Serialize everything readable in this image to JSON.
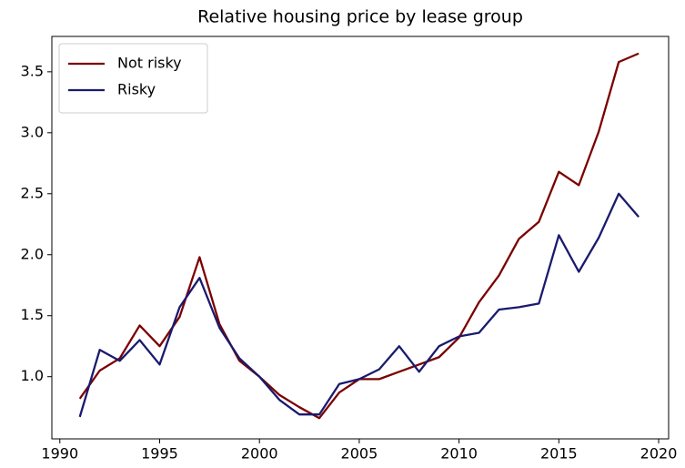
{
  "chart_data": {
    "type": "line",
    "title": "Relative housing price by lease group",
    "x": [
      1991,
      1992,
      1993,
      1994,
      1995,
      1996,
      1997,
      1998,
      1999,
      2000,
      2001,
      2002,
      2003,
      2004,
      2005,
      2006,
      2007,
      2008,
      2009,
      2010,
      2011,
      2012,
      2013,
      2014,
      2015,
      2016,
      2017,
      2018,
      2019
    ],
    "series": [
      {
        "name": "Not risky",
        "color": "#7b0000",
        "values": [
          0.82,
          1.05,
          1.15,
          1.42,
          1.25,
          1.49,
          1.98,
          1.43,
          1.13,
          1.0,
          0.85,
          0.75,
          0.66,
          0.87,
          0.98,
          0.98,
          1.04,
          1.1,
          1.16,
          1.32,
          1.61,
          1.83,
          2.13,
          2.27,
          2.68,
          2.57,
          3.01,
          3.58,
          3.65
        ]
      },
      {
        "name": "Risky",
        "color": "#1a1a6e",
        "values": [
          0.67,
          1.22,
          1.13,
          1.3,
          1.1,
          1.57,
          1.81,
          1.4,
          1.15,
          1.0,
          0.81,
          0.69,
          0.69,
          0.94,
          0.98,
          1.06,
          1.25,
          1.04,
          1.25,
          1.33,
          1.36,
          1.55,
          1.57,
          1.6,
          2.16,
          1.86,
          2.14,
          2.5,
          2.31
        ]
      }
    ],
    "xlim": [
      1989.6,
      2020.5
    ],
    "xticks": [
      1990,
      1995,
      2000,
      2005,
      2010,
      2015,
      2020
    ],
    "ylim": [
      0.49,
      3.79
    ],
    "yticks": [
      {
        "value": 1,
        "label": "1.0"
      },
      1.5,
      {
        "value": 2,
        "label": "2.0"
      },
      2.5,
      {
        "value": 3,
        "label": "3.0"
      },
      3.5
    ],
    "grid": false,
    "legend": "upper left"
  }
}
